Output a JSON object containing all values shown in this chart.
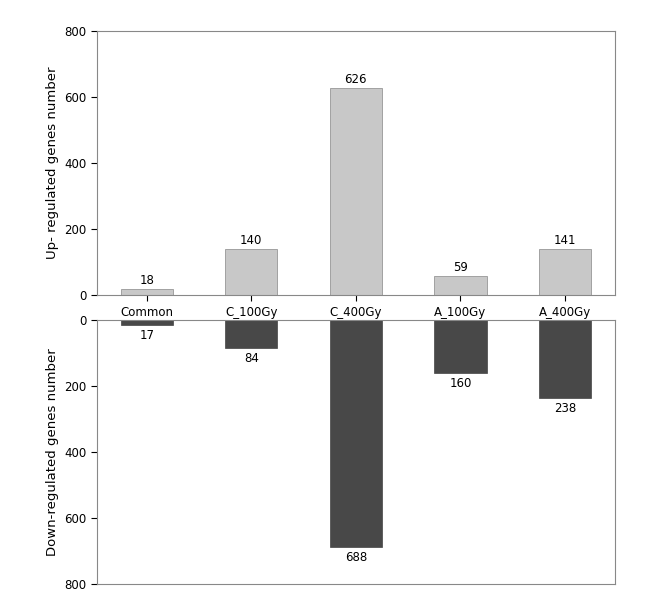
{
  "categories": [
    "Common",
    "C_100Gy",
    "C_400Gy",
    "A_100Gy",
    "A_400Gy"
  ],
  "up_values": [
    18,
    140,
    626,
    59,
    141
  ],
  "down_values": [
    -17,
    -84,
    -688,
    -160,
    -238
  ],
  "up_bar_color": "#c8c8c8",
  "down_bar_color": "#484848",
  "up_ylabel": "Up- regulated genes number",
  "down_ylabel": "Down-regulated genes number",
  "bar_width": 0.5,
  "background_color": "#ffffff",
  "label_fontsize": 8.5,
  "tick_fontsize": 8.5,
  "ylabel_fontsize": 9.5,
  "spine_color": "#888888"
}
